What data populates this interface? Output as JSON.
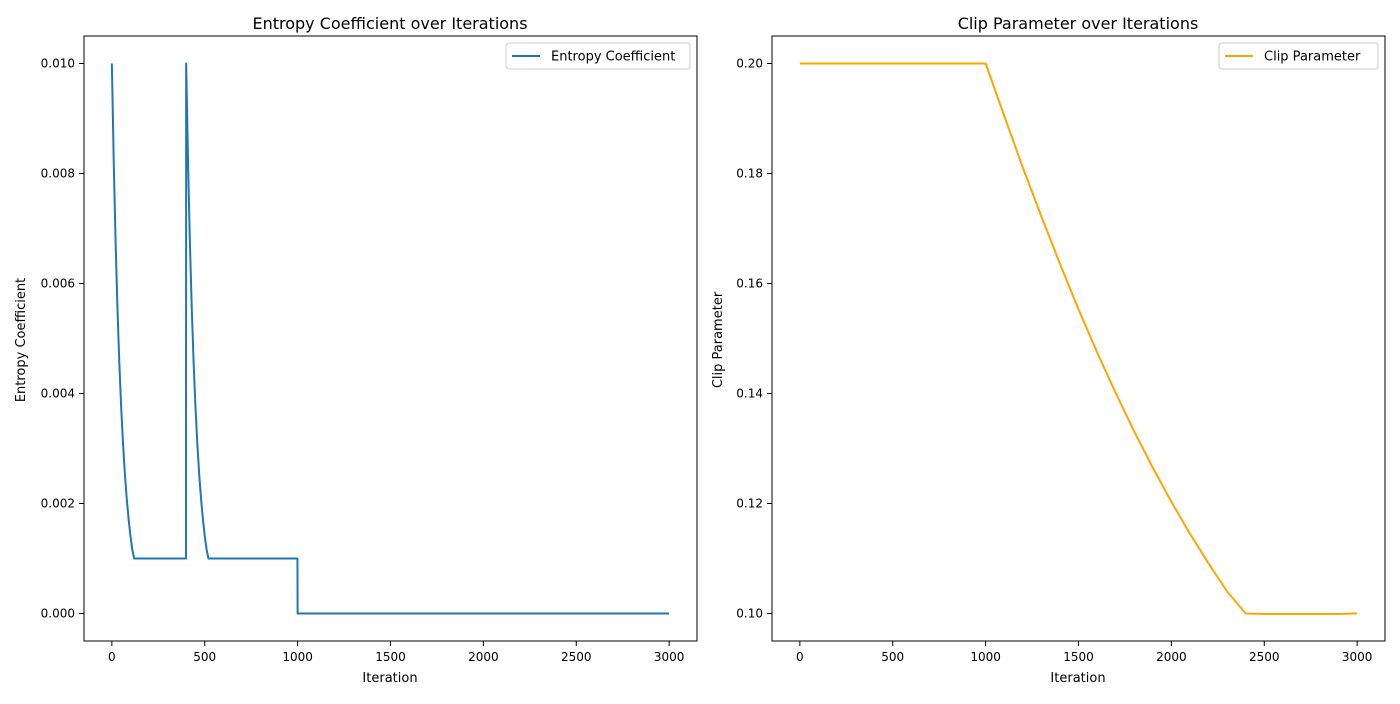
{
  "chart_data": [
    {
      "type": "line",
      "title": "Entropy Coefficient over Iterations",
      "xlabel": "Iteration",
      "ylabel": "Entropy Coefficient",
      "xlim": [
        -150,
        3150
      ],
      "ylim": [
        -0.0005,
        0.0105
      ],
      "xticks": [
        0,
        500,
        1000,
        1500,
        2000,
        2500,
        3000
      ],
      "xtick_labels": [
        "0",
        "500",
        "1000",
        "1500",
        "2000",
        "2500",
        "3000"
      ],
      "yticks": [
        0.0,
        0.002,
        0.004,
        0.006,
        0.008,
        0.01
      ],
      "ytick_labels": [
        "0.000",
        "0.002",
        "0.004",
        "0.006",
        "0.008",
        "0.010"
      ],
      "grid": false,
      "legend_position": "top-right",
      "series": [
        {
          "name": "Entropy Coefficient",
          "color": "#1f77b4",
          "x": [
            0,
            10,
            20,
            30,
            40,
            50,
            60,
            70,
            80,
            90,
            100,
            110,
            120,
            130,
            399,
            400,
            410,
            420,
            430,
            440,
            450,
            460,
            470,
            480,
            490,
            500,
            510,
            520,
            530,
            999,
            1000,
            3000
          ],
          "y": [
            0.01,
            0.00822,
            0.00676,
            0.00556,
            0.00457,
            0.00376,
            0.00309,
            0.00254,
            0.00209,
            0.00172,
            0.00141,
            0.00116,
            0.001,
            0.001,
            0.001,
            0.01,
            0.00822,
            0.00676,
            0.00556,
            0.00457,
            0.00376,
            0.00309,
            0.00254,
            0.00209,
            0.00172,
            0.00141,
            0.00116,
            0.001,
            0.001,
            0.001,
            0.0,
            0.0
          ]
        }
      ]
    },
    {
      "type": "line",
      "title": "Clip Parameter over Iterations",
      "xlabel": "Iteration",
      "ylabel": "Clip Parameter",
      "xlim": [
        -150,
        3150
      ],
      "ylim": [
        0.095,
        0.205
      ],
      "xticks": [
        0,
        500,
        1000,
        1500,
        2000,
        2500,
        3000
      ],
      "xtick_labels": [
        "0",
        "500",
        "1000",
        "1500",
        "2000",
        "2500",
        "3000"
      ],
      "yticks": [
        0.1,
        0.12,
        0.14,
        0.16,
        0.18,
        0.2
      ],
      "ytick_labels": [
        "0.10",
        "0.12",
        "0.14",
        "0.16",
        "0.18",
        "0.20"
      ],
      "grid": false,
      "legend_position": "top-right",
      "series": [
        {
          "name": "Clip Parameter",
          "color": "#ffa500",
          "x": [
            0,
            1000,
            1100,
            1200,
            1300,
            1400,
            1500,
            1600,
            1700,
            1800,
            1900,
            2000,
            2100,
            2200,
            2300,
            2400,
            2500,
            2600,
            2700,
            2800,
            2900,
            2980,
            3000
          ],
          "y": [
            0.2,
            0.2,
            0.1905,
            0.1811,
            0.1722,
            0.1636,
            0.1553,
            0.1475,
            0.1401,
            0.1331,
            0.1265,
            0.1203,
            0.1145,
            0.1091,
            0.104,
            0.1,
            0.0999,
            0.0999,
            0.0999,
            0.0999,
            0.0999,
            0.1,
            0.1
          ]
        }
      ]
    }
  ]
}
